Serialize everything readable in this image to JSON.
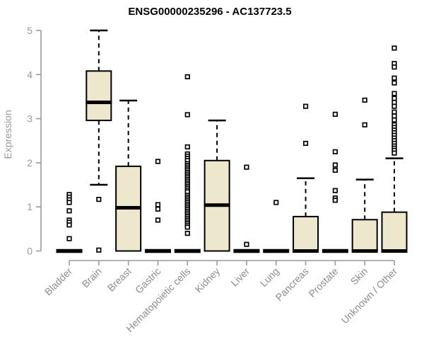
{
  "chart_data": {
    "type": "boxplot",
    "title": "ENSG00000235296 - AC137723.5",
    "xlabel": "",
    "ylabel": "Expression",
    "ylim": [
      0,
      5
    ],
    "yticks": [
      0,
      1,
      2,
      3,
      4,
      5
    ],
    "grid": false,
    "legend": "none",
    "colors": {
      "box_fill": "#ede8cd",
      "box_stroke": "#000000",
      "median": "#000000",
      "whisker": "#000000",
      "outlier_stroke": "#000000",
      "outlier_fill": "#ffffff",
      "axis": "#9a9a9a",
      "tick_label": "#9a9a9a",
      "category_label": "#8c8c8c",
      "title": "#000000",
      "background": "#ffffff"
    },
    "categories": [
      "Bladder",
      "Brain",
      "Breast",
      "Gastric",
      "Hematopoietic cells",
      "Kidney",
      "Liver",
      "Lung",
      "Pancreas",
      "Prostate",
      "Skin",
      "Unknown / Other"
    ],
    "series": [
      {
        "category": "Bladder",
        "whisker_low": 0,
        "q1": 0,
        "median": 0,
        "q3": 0,
        "whisker_high": 0,
        "outliers": [
          1.28,
          1.22,
          1.16,
          1.1,
          0.91,
          0.7,
          0.65,
          0.59,
          0.28
        ]
      },
      {
        "category": "Brain",
        "whisker_low": 1.5,
        "q1": 2.96,
        "median": 3.37,
        "q3": 4.08,
        "whisker_high": 5.0,
        "outliers": [
          1.17,
          0.02
        ]
      },
      {
        "category": "Breast",
        "whisker_low": 0,
        "q1": 0,
        "median": 0.98,
        "q3": 1.92,
        "whisker_high": 3.41,
        "outliers": []
      },
      {
        "category": "Gastric",
        "whisker_low": 0,
        "q1": 0,
        "median": 0,
        "q3": 0,
        "whisker_high": 0,
        "outliers": [
          2.03,
          1.05,
          0.95,
          0.7
        ]
      },
      {
        "category": "Hematopoietic cells",
        "whisker_low": 0,
        "q1": 0,
        "median": 0,
        "q3": 0,
        "whisker_high": 0,
        "outliers": [
          3.95,
          3.09,
          2.36,
          2.2,
          2.15,
          2.1,
          2.05,
          1.98,
          1.94,
          1.9,
          1.86,
          1.82,
          1.78,
          1.74,
          1.7,
          1.66,
          1.62,
          1.58,
          1.54,
          1.5,
          1.46,
          1.42,
          1.38,
          1.34,
          1.26,
          1.22,
          1.18,
          1.14,
          1.1,
          1.06,
          1.02,
          0.98,
          0.94,
          0.9,
          0.86,
          0.82,
          0.78,
          0.74,
          0.7,
          0.66,
          0.62,
          0.58,
          0.54,
          0.4
        ]
      },
      {
        "category": "Kidney",
        "whisker_low": 0,
        "q1": 0,
        "median": 1.04,
        "q3": 2.05,
        "whisker_high": 2.96,
        "outliers": []
      },
      {
        "category": "Liver",
        "whisker_low": 0,
        "q1": 0,
        "median": 0,
        "q3": 0,
        "whisker_high": 0,
        "outliers": [
          1.9,
          0.15
        ]
      },
      {
        "category": "Lung",
        "whisker_low": 0,
        "q1": 0,
        "median": 0,
        "q3": 0,
        "whisker_high": 0,
        "outliers": [
          1.1
        ]
      },
      {
        "category": "Pancreas",
        "whisker_low": 0,
        "q1": 0,
        "median": 0,
        "q3": 0.78,
        "whisker_high": 1.65,
        "outliers": [
          3.28,
          2.44
        ]
      },
      {
        "category": "Prostate",
        "whisker_low": 0,
        "q1": 0,
        "median": 0,
        "q3": 0,
        "whisker_high": 0,
        "outliers": [
          3.1,
          2.25,
          1.95,
          1.83,
          1.37,
          1.2,
          1.15
        ]
      },
      {
        "category": "Skin",
        "whisker_low": 0,
        "q1": 0,
        "median": 0,
        "q3": 0.71,
        "whisker_high": 1.62,
        "outliers": [
          3.42,
          2.86
        ]
      },
      {
        "category": "Unknown / Other",
        "whisker_low": 0,
        "q1": 0,
        "median": 0,
        "q3": 0.88,
        "whisker_high": 2.1,
        "outliers": [
          4.6,
          4.25,
          4.17,
          3.92,
          3.81,
          3.57,
          3.46,
          3.37,
          3.28,
          3.15,
          3.06,
          2.97,
          2.86,
          2.8,
          2.74,
          2.68,
          2.62,
          2.56,
          2.5,
          2.44,
          2.38,
          2.33,
          2.28,
          2.22
        ]
      }
    ]
  }
}
